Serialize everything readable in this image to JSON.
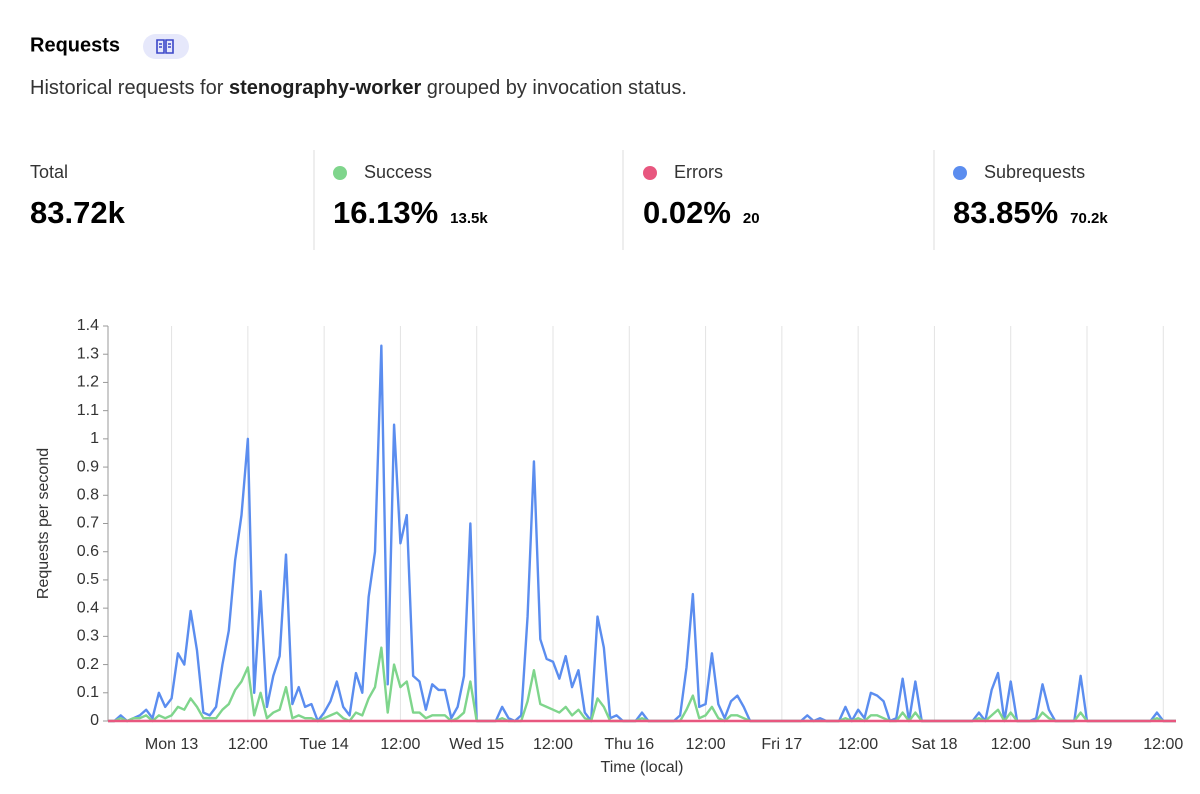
{
  "header": {
    "title": "Requests",
    "description": [
      "Historical requests for ",
      "stenography-worker",
      " grouped by invocation status."
    ]
  },
  "total": {
    "label": "Total",
    "value": "83.72k"
  },
  "chart_data": {
    "type": "line",
    "xlabel": "Time (local)",
    "ylabel": "Requests per second",
    "xlim": [
      -10,
      158
    ],
    "ylim": [
      0,
      1.4
    ],
    "yticks": [
      0,
      0.1,
      0.2,
      0.3,
      0.4,
      0.5,
      0.6,
      0.7,
      0.8,
      0.9,
      1,
      1.1,
      1.2,
      1.3,
      1.4
    ],
    "xticks": [
      {
        "value": 0,
        "label": "Mon 13"
      },
      {
        "value": 12,
        "label": "12:00"
      },
      {
        "value": 24,
        "label": "Tue 14"
      },
      {
        "value": 36,
        "label": "12:00"
      },
      {
        "value": 48,
        "label": "Wed 15"
      },
      {
        "value": 60,
        "label": "12:00"
      },
      {
        "value": 72,
        "label": "Thu 16"
      },
      {
        "value": 84,
        "label": "12:00"
      },
      {
        "value": 96,
        "label": "Fri 17"
      },
      {
        "value": 108,
        "label": "12:00"
      },
      {
        "value": 120,
        "label": "Sat 18"
      },
      {
        "value": 132,
        "label": "12:00"
      },
      {
        "value": 144,
        "label": "Sun 19"
      },
      {
        "value": 156,
        "label": "12:00"
      }
    ],
    "grid": true,
    "x": [
      -10,
      -9,
      -8,
      -7,
      -6,
      -5,
      -4,
      -3,
      -2,
      -1,
      0,
      1,
      2,
      3,
      4,
      5,
      6,
      7,
      8,
      9,
      10,
      11,
      12,
      13,
      14,
      15,
      16,
      17,
      18,
      19,
      20,
      21,
      22,
      23,
      24,
      25,
      26,
      27,
      28,
      29,
      30,
      31,
      32,
      33,
      34,
      35,
      36,
      37,
      38,
      39,
      40,
      41,
      42,
      43,
      44,
      45,
      46,
      47,
      48,
      49,
      50,
      51,
      52,
      53,
      54,
      55,
      56,
      57,
      58,
      59,
      60,
      61,
      62,
      63,
      64,
      65,
      66,
      67,
      68,
      69,
      70,
      71,
      72,
      73,
      74,
      75,
      76,
      77,
      78,
      79,
      80,
      81,
      82,
      83,
      84,
      85,
      86,
      87,
      88,
      89,
      90,
      91,
      92,
      93,
      94,
      95,
      96,
      97,
      98,
      99,
      100,
      101,
      102,
      103,
      104,
      105,
      106,
      107,
      108,
      109,
      110,
      111,
      112,
      113,
      114,
      115,
      116,
      117,
      118,
      119,
      120,
      121,
      122,
      123,
      124,
      125,
      126,
      127,
      128,
      129,
      130,
      131,
      132,
      133,
      134,
      135,
      136,
      137,
      138,
      139,
      140,
      141,
      142,
      143,
      144,
      145,
      146,
      147,
      148,
      149,
      150,
      151,
      152,
      153,
      154,
      155,
      156,
      157,
      158
    ],
    "series": [
      {
        "name": "Subrequests",
        "color": "#5b8def",
        "share": "83.85%",
        "count": "70.2k",
        "values": [
          0,
          0,
          0.02,
          0,
          0.01,
          0.02,
          0.04,
          0.01,
          0.1,
          0.05,
          0.08,
          0.24,
          0.2,
          0.39,
          0.25,
          0.03,
          0.02,
          0.05,
          0.2,
          0.32,
          0.57,
          0.73,
          1.0,
          0.1,
          0.46,
          0.05,
          0.16,
          0.23,
          0.59,
          0.06,
          0.12,
          0.05,
          0.06,
          0,
          0.03,
          0.07,
          0.14,
          0.05,
          0.02,
          0.17,
          0.1,
          0.44,
          0.6,
          1.33,
          0.13,
          1.05,
          0.63,
          0.73,
          0.16,
          0.14,
          0.04,
          0.13,
          0.11,
          0.11,
          0.01,
          0.05,
          0.16,
          0.7,
          0,
          0,
          0,
          0,
          0.05,
          0.01,
          0,
          0.02,
          0.37,
          0.92,
          0.29,
          0.22,
          0.21,
          0.15,
          0.23,
          0.12,
          0.18,
          0.03,
          0,
          0.37,
          0.26,
          0.01,
          0.02,
          0,
          0,
          0,
          0.03,
          0,
          0,
          0,
          0,
          0,
          0.02,
          0.19,
          0.45,
          0.05,
          0.06,
          0.24,
          0.06,
          0.01,
          0.07,
          0.09,
          0.05,
          0,
          0,
          0,
          0,
          0,
          0,
          0,
          0,
          0,
          0.02,
          0,
          0.01,
          0,
          0,
          0,
          0.05,
          0,
          0.04,
          0.01,
          0.1,
          0.09,
          0.07,
          0,
          0.01,
          0.15,
          0,
          0.14,
          0,
          0,
          0,
          0,
          0,
          0,
          0,
          0,
          0,
          0.03,
          0,
          0.11,
          0.17,
          0,
          0.14,
          0,
          0,
          0,
          0.01,
          0.13,
          0.04,
          0,
          0,
          0,
          0,
          0.16,
          0,
          0,
          0,
          0,
          0,
          0,
          0,
          0,
          0,
          0,
          0,
          0.03,
          0,
          0,
          0
        ]
      },
      {
        "name": "Success",
        "color": "#7fd58c",
        "share": "16.13%",
        "count": "13.5k",
        "values": [
          0,
          0,
          0.01,
          0,
          0.01,
          0.01,
          0.02,
          0,
          0.02,
          0.01,
          0.02,
          0.05,
          0.04,
          0.08,
          0.05,
          0.01,
          0.01,
          0.01,
          0.04,
          0.06,
          0.11,
          0.14,
          0.19,
          0.02,
          0.1,
          0.01,
          0.03,
          0.04,
          0.12,
          0.01,
          0.02,
          0.01,
          0.01,
          0,
          0.01,
          0.02,
          0.03,
          0.01,
          0,
          0.03,
          0.02,
          0.08,
          0.12,
          0.26,
          0.03,
          0.2,
          0.12,
          0.14,
          0.03,
          0.03,
          0.01,
          0.02,
          0.02,
          0.02,
          0,
          0.01,
          0.03,
          0.14,
          0,
          0,
          0,
          0,
          0.01,
          0,
          0,
          0,
          0.07,
          0.18,
          0.06,
          0.05,
          0.04,
          0.03,
          0.05,
          0.02,
          0.04,
          0.01,
          0,
          0.08,
          0.05,
          0,
          0,
          0,
          0,
          0,
          0.01,
          0,
          0,
          0,
          0,
          0,
          0,
          0.04,
          0.09,
          0.01,
          0.02,
          0.05,
          0.01,
          0,
          0.02,
          0.02,
          0.01,
          0,
          0,
          0,
          0,
          0,
          0,
          0,
          0,
          0,
          0,
          0,
          0,
          0,
          0,
          0,
          0.01,
          0,
          0.01,
          0,
          0.02,
          0.02,
          0.01,
          0,
          0,
          0.03,
          0,
          0.03,
          0,
          0,
          0,
          0,
          0,
          0,
          0,
          0,
          0,
          0.01,
          0,
          0.02,
          0.04,
          0,
          0.03,
          0,
          0,
          0,
          0,
          0.03,
          0.01,
          0,
          0,
          0,
          0,
          0.03,
          0,
          0,
          0,
          0,
          0,
          0,
          0,
          0,
          0,
          0,
          0,
          0.01,
          0,
          0,
          0
        ]
      },
      {
        "name": "Errors",
        "color": "#e8577f",
        "share": "0.02%",
        "count": "20",
        "values": [
          0,
          0,
          0,
          0,
          0,
          0,
          0,
          0,
          0,
          0,
          0,
          0,
          0,
          0,
          0,
          0,
          0,
          0,
          0,
          0,
          0,
          0,
          0,
          0,
          0,
          0,
          0,
          0,
          0,
          0,
          0,
          0,
          0,
          0,
          0,
          0,
          0,
          0,
          0,
          0,
          0,
          0,
          0,
          0,
          0,
          0,
          0,
          0,
          0,
          0,
          0,
          0,
          0,
          0,
          0,
          0,
          0,
          0,
          0,
          0,
          0,
          0,
          0,
          0,
          0,
          0,
          0,
          0,
          0,
          0,
          0,
          0,
          0,
          0,
          0,
          0,
          0,
          0,
          0,
          0,
          0,
          0,
          0,
          0,
          0,
          0,
          0,
          0,
          0,
          0,
          0,
          0,
          0,
          0,
          0,
          0,
          0,
          0,
          0,
          0,
          0,
          0,
          0,
          0,
          0,
          0,
          0,
          0,
          0,
          0,
          0,
          0,
          0,
          0,
          0,
          0,
          0,
          0,
          0,
          0,
          0,
          0,
          0,
          0,
          0,
          0,
          0,
          0,
          0,
          0,
          0,
          0,
          0,
          0,
          0,
          0,
          0,
          0,
          0,
          0,
          0,
          0,
          0,
          0,
          0,
          0,
          0,
          0,
          0,
          0,
          0,
          0,
          0,
          0,
          0,
          0,
          0,
          0,
          0,
          0,
          0,
          0,
          0,
          0,
          0,
          0,
          0,
          0,
          0
        ]
      }
    ]
  }
}
